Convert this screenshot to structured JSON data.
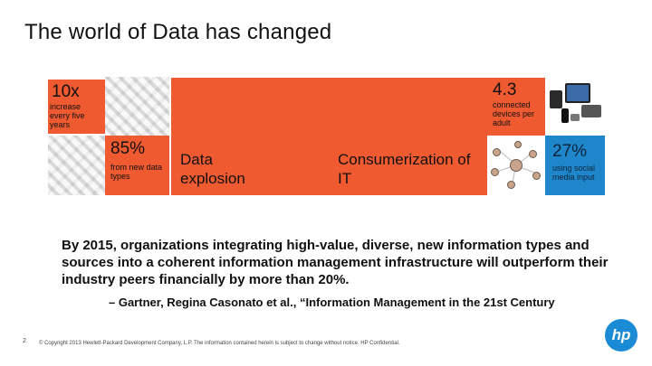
{
  "slide": {
    "title": "The world of Data has changed",
    "tiles": {
      "growth": {
        "value": "10x",
        "caption": "increase every five years"
      },
      "new_types": {
        "value": "85%",
        "caption": "from new data types"
      },
      "explosion": {
        "label": "Data explosion"
      },
      "consumerization": {
        "label": "Consumerization of IT"
      },
      "devices": {
        "value": "4.3",
        "caption": "connected devices per adult"
      },
      "social": {
        "value": "27%",
        "caption": "using social media input"
      }
    },
    "quote": "By 2015, organizations integrating high-value, diverse, new information types and sources into a coherent information management infrastructure will outperform their industry peers financially by more than 20%.",
    "attribution": "– Gartner, Regina Casonato et al., “Information Management in the 21st Century",
    "page_number": "2",
    "footer": "© Copyright 2013 Hewlett-Packard Development Company, L.P. The information contained herein is subject to change without notice. HP Confidential.",
    "logo_text": "hp"
  },
  "colors": {
    "orange": "#f05a30",
    "blue": "#1f86cc",
    "hp_blue": "#1b8bd6"
  }
}
